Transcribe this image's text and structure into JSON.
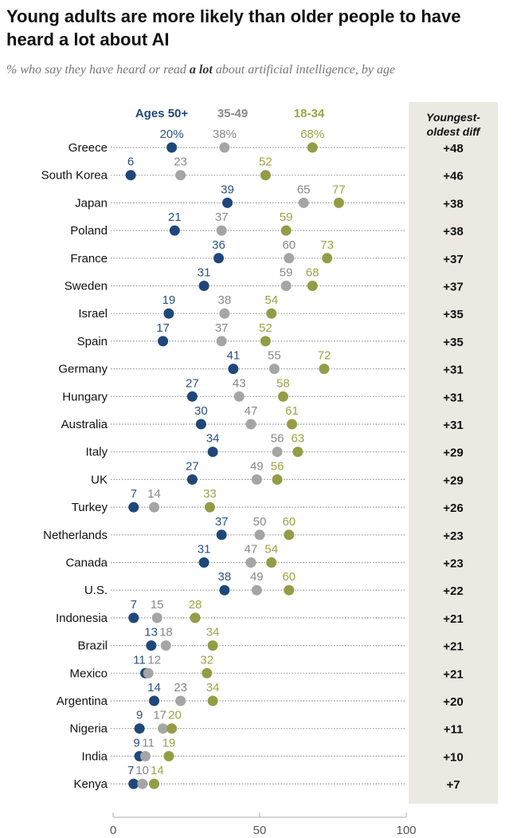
{
  "chart_data": {
    "type": "scatter",
    "title": "Young adults are more likely than older people to have heard a lot about AI",
    "subtitle_pre": "% who say they have heard or read ",
    "subtitle_bold": "a lot",
    "subtitle_post": " about artificial intelligence, by age",
    "xlim": [
      0,
      100
    ],
    "xticks": [
      "0",
      "50",
      "100"
    ],
    "diff_header": [
      "Youngest-",
      "oldest diff"
    ],
    "series": [
      {
        "name": "Ages 50+",
        "color": "#1f477a",
        "label_color": "#2c5282"
      },
      {
        "name": "35-49",
        "color": "#a5a5a5",
        "label_color": "#888888"
      },
      {
        "name": "18-34",
        "color": "#949c45",
        "label_color": "#a0a245"
      }
    ],
    "rows": [
      {
        "country": "Greece",
        "values": [
          20,
          38,
          68
        ],
        "labels": [
          "20%",
          "38%",
          "68%"
        ],
        "diff": "+48"
      },
      {
        "country": "South Korea",
        "values": [
          6,
          23,
          52
        ],
        "labels": [
          "6",
          "23",
          "52"
        ],
        "diff": "+46"
      },
      {
        "country": "Japan",
        "values": [
          39,
          65,
          77
        ],
        "labels": [
          "39",
          "65",
          "77"
        ],
        "diff": "+38"
      },
      {
        "country": "Poland",
        "values": [
          21,
          37,
          59
        ],
        "labels": [
          "21",
          "37",
          "59"
        ],
        "diff": "+38"
      },
      {
        "country": "France",
        "values": [
          36,
          60,
          73
        ],
        "labels": [
          "36",
          "60",
          "73"
        ],
        "diff": "+37"
      },
      {
        "country": "Sweden",
        "values": [
          31,
          59,
          68
        ],
        "labels": [
          "31",
          "59",
          "68"
        ],
        "diff": "+37"
      },
      {
        "country": "Israel",
        "values": [
          19,
          38,
          54
        ],
        "labels": [
          "19",
          "38",
          "54"
        ],
        "diff": "+35"
      },
      {
        "country": "Spain",
        "values": [
          17,
          37,
          52
        ],
        "labels": [
          "17",
          "37",
          "52"
        ],
        "diff": "+35"
      },
      {
        "country": "Germany",
        "values": [
          41,
          55,
          72
        ],
        "labels": [
          "41",
          "55",
          "72"
        ],
        "diff": "+31"
      },
      {
        "country": "Hungary",
        "values": [
          27,
          43,
          58
        ],
        "labels": [
          "27",
          "43",
          "58"
        ],
        "diff": "+31"
      },
      {
        "country": "Australia",
        "values": [
          30,
          47,
          61
        ],
        "labels": [
          "30",
          "47",
          "61"
        ],
        "diff": "+31"
      },
      {
        "country": "Italy",
        "values": [
          34,
          56,
          63
        ],
        "labels": [
          "34",
          "56",
          "63"
        ],
        "diff": "+29"
      },
      {
        "country": "UK",
        "values": [
          27,
          49,
          56
        ],
        "labels": [
          "27",
          "49",
          "56"
        ],
        "diff": "+29"
      },
      {
        "country": "Turkey",
        "values": [
          7,
          14,
          33
        ],
        "labels": [
          "7",
          "14",
          "33"
        ],
        "diff": "+26"
      },
      {
        "country": "Netherlands",
        "values": [
          37,
          50,
          60
        ],
        "labels": [
          "37",
          "50",
          "60"
        ],
        "diff": "+23"
      },
      {
        "country": "Canada",
        "values": [
          31,
          47,
          54
        ],
        "labels": [
          "31",
          "47",
          "54"
        ],
        "diff": "+23"
      },
      {
        "country": "U.S.",
        "values": [
          38,
          49,
          60
        ],
        "labels": [
          "38",
          "49",
          "60"
        ],
        "diff": "+22"
      },
      {
        "country": "Indonesia",
        "values": [
          7,
          15,
          28
        ],
        "labels": [
          "7",
          "15",
          "28"
        ],
        "diff": "+21"
      },
      {
        "country": "Brazil",
        "values": [
          13,
          18,
          34
        ],
        "labels": [
          "13",
          "18",
          "34"
        ],
        "diff": "+21"
      },
      {
        "country": "Mexico",
        "values": [
          11,
          12,
          32
        ],
        "labels": [
          "11",
          "12",
          "32"
        ],
        "diff": "+21"
      },
      {
        "country": "Argentina",
        "values": [
          14,
          23,
          34
        ],
        "labels": [
          "14",
          "23",
          "34"
        ],
        "diff": "+20"
      },
      {
        "country": "Nigeria",
        "values": [
          9,
          17,
          20
        ],
        "labels": [
          "9",
          "17",
          "20"
        ],
        "diff": "+11"
      },
      {
        "country": "India",
        "values": [
          9,
          11,
          19
        ],
        "labels": [
          "9",
          "11",
          "19"
        ],
        "diff": "+10"
      },
      {
        "country": "Kenya",
        "values": [
          7,
          10,
          14
        ],
        "labels": [
          "7",
          "10",
          "14"
        ],
        "diff": "+7"
      }
    ]
  }
}
